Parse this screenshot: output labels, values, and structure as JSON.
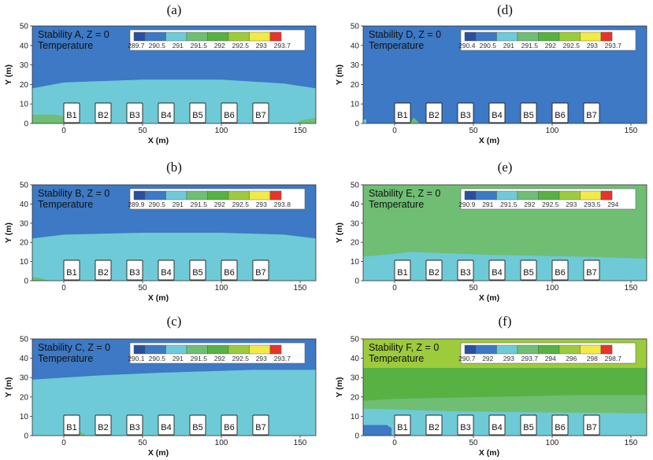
{
  "chart_data": [
    {
      "type": "heatmap",
      "panel_label": "(a)",
      "title_line1": "Stability A, Z = 0",
      "title_line2": "Temperature",
      "colorbar": [
        "289.7",
        "290.5",
        "291",
        "291.5",
        "292",
        "292.5",
        "293",
        "293.7"
      ],
      "xlabel": "X (m)",
      "ylabel": "Y (m)",
      "xlim": [
        -20,
        160
      ],
      "ylim": [
        0,
        50
      ],
      "xticks": [
        "0",
        "50",
        "100",
        "150"
      ],
      "yticks": [
        "0",
        "10",
        "20",
        "30",
        "40",
        "50"
      ],
      "bands": [
        {
          "level": 2,
          "boundary": [
            [
              -20,
              0
            ],
            [
              160,
              0
            ],
            [
              160,
              18
            ],
            [
              140,
              20.5
            ],
            [
              100,
              22.5
            ],
            [
              50,
              22.5
            ],
            [
              0,
              21
            ],
            [
              -20,
              18
            ]
          ]
        },
        {
          "level": 3,
          "boundary": [
            [
              -20,
              0
            ],
            [
              10,
              0
            ],
            [
              5,
              2.5
            ],
            [
              -5,
              4.5
            ],
            [
              -20,
              4.5
            ]
          ]
        },
        {
          "level": 3,
          "boundary": [
            [
              148,
              0
            ],
            [
              160,
              0
            ],
            [
              160,
              3
            ],
            [
              150,
              1.5
            ]
          ]
        }
      ],
      "buildings": [
        "B1",
        "B2",
        "B3",
        "B4",
        "B5",
        "B6",
        "B7"
      ]
    },
    {
      "type": "heatmap",
      "panel_label": "(b)",
      "title_line1": "Stability B, Z = 0",
      "title_line2": "Temperature",
      "colorbar": [
        "289.9",
        "290.5",
        "291",
        "291.5",
        "292",
        "292.5",
        "293",
        "293.8"
      ],
      "xlabel": "X (m)",
      "ylabel": "Y (m)",
      "xlim": [
        -20,
        160
      ],
      "ylim": [
        0,
        50
      ],
      "xticks": [
        "0",
        "50",
        "100",
        "150"
      ],
      "yticks": [
        "0",
        "10",
        "20",
        "30",
        "40",
        "50"
      ],
      "bands": [
        {
          "level": 2,
          "boundary": [
            [
              -20,
              0
            ],
            [
              160,
              0
            ],
            [
              160,
              22
            ],
            [
              140,
              24
            ],
            [
              100,
              25
            ],
            [
              50,
              25
            ],
            [
              0,
              24
            ],
            [
              -20,
              22
            ]
          ]
        },
        {
          "level": 3,
          "boundary": [
            [
              -20,
              0
            ],
            [
              -10,
              0
            ],
            [
              -15,
              1.5
            ],
            [
              -20,
              2
            ]
          ]
        }
      ],
      "buildings": [
        "B1",
        "B2",
        "B3",
        "B4",
        "B5",
        "B6",
        "B7"
      ]
    },
    {
      "type": "heatmap",
      "panel_label": "(c)",
      "title_line1": "Stability C, Z = 0",
      "title_line2": "Temperature",
      "colorbar": [
        "290.1",
        "290.5",
        "291",
        "291.5",
        "292",
        "292.5",
        "293",
        "293.7"
      ],
      "xlabel": "X (m)",
      "ylabel": "Y (m)",
      "xlim": [
        -20,
        160
      ],
      "ylim": [
        0,
        50
      ],
      "xticks": [
        "0",
        "50",
        "100",
        "150"
      ],
      "yticks": [
        "0",
        "10",
        "20",
        "30",
        "40",
        "50"
      ],
      "bands": [
        {
          "level": 2,
          "boundary": [
            [
              -20,
              0
            ],
            [
              160,
              0
            ],
            [
              160,
              34
            ],
            [
              120,
              34
            ],
            [
              60,
              32.5
            ],
            [
              20,
              31
            ],
            [
              -20,
              29
            ]
          ]
        },
        {
          "level": 3,
          "boundary": [
            [
              8,
              0
            ],
            [
              14,
              0
            ],
            [
              10,
              2.5
            ]
          ]
        }
      ],
      "buildings": [
        "B1",
        "B2",
        "B3",
        "B4",
        "B5",
        "B6",
        "B7"
      ]
    },
    {
      "type": "heatmap",
      "panel_label": "(d)",
      "title_line1": "Stability D, Z = 0",
      "title_line2": "Temperature",
      "colorbar": [
        "290.4",
        "290.5",
        "291",
        "291.5",
        "292",
        "292.5",
        "293",
        "293.7"
      ],
      "xlabel": "X (m)",
      "ylabel": "Y (m)",
      "xlim": [
        -20,
        160
      ],
      "ylim": [
        0,
        50
      ],
      "xticks": [
        "0",
        "50",
        "100",
        "150"
      ],
      "yticks": [
        "0",
        "10",
        "20",
        "30",
        "40",
        "50"
      ],
      "bands": [
        {
          "level": 2,
          "boundary": [
            [
              -20,
              0
            ],
            [
              -18,
              0
            ],
            [
              -18,
              2
            ],
            [
              -20,
              2
            ]
          ]
        },
        {
          "level": 3,
          "boundary": [
            [
              10,
              0
            ],
            [
              16,
              0
            ],
            [
              12,
              3
            ]
          ]
        }
      ],
      "buildings": [
        "B1",
        "B2",
        "B3",
        "B4",
        "B5",
        "B6",
        "B7"
      ]
    },
    {
      "type": "heatmap",
      "panel_label": "(e)",
      "title_line1": "Stability E, Z = 0",
      "title_line2": "Temperature",
      "colorbar": [
        "290.9",
        "291",
        "291.5",
        "292",
        "292.5",
        "293",
        "293.5",
        "294"
      ],
      "xlabel": "X (m)",
      "ylabel": "Y (m)",
      "xlim": [
        -20,
        160
      ],
      "ylim": [
        0,
        50
      ],
      "xticks": [
        "0",
        "50",
        "100",
        "150"
      ],
      "yticks": [
        "0",
        "10",
        "20",
        "30",
        "40",
        "50"
      ],
      "background_level": 3,
      "bands": [
        {
          "level": 2,
          "boundary": [
            [
              -20,
              0
            ],
            [
              160,
              0
            ],
            [
              160,
              11.5
            ],
            [
              120,
              12.5
            ],
            [
              60,
              13.5
            ],
            [
              10,
              15
            ],
            [
              0,
              14
            ],
            [
              -20,
              12.5
            ]
          ]
        }
      ],
      "buildings": [
        "B1",
        "B2",
        "B3",
        "B4",
        "B5",
        "B6",
        "B7"
      ]
    },
    {
      "type": "heatmap",
      "panel_label": "(f)",
      "title_line1": "Stability F, Z = 0",
      "title_line2": "Temperature",
      "colorbar": [
        "290.7",
        "292",
        "293",
        "293.7",
        "294",
        "296",
        "298",
        "298.7"
      ],
      "xlabel": "X (m)",
      "ylabel": "Y (m)",
      "xlim": [
        -20,
        160
      ],
      "ylim": [
        0,
        50
      ],
      "xticks": [
        "0",
        "50",
        "100",
        "150"
      ],
      "yticks": [
        "0",
        "10",
        "20",
        "30",
        "40",
        "50"
      ],
      "background_level": 5,
      "bands": [
        {
          "level": 4,
          "boundary": [
            [
              -20,
              0
            ],
            [
              160,
              0
            ],
            [
              160,
              35
            ],
            [
              -20,
              35
            ]
          ]
        },
        {
          "level": 3,
          "boundary": [
            [
              -20,
              0
            ],
            [
              160,
              0
            ],
            [
              160,
              21
            ],
            [
              120,
              21
            ],
            [
              60,
              20
            ],
            [
              0,
              19
            ],
            [
              -20,
              18
            ]
          ]
        },
        {
          "level": 2,
          "boundary": [
            [
              -20,
              0
            ],
            [
              160,
              0
            ],
            [
              160,
              11.5
            ],
            [
              100,
              12
            ],
            [
              40,
              12.5
            ],
            [
              0,
              13.5
            ],
            [
              -20,
              14
            ]
          ]
        },
        {
          "level": 1,
          "boundary": [
            [
              -20,
              0
            ],
            [
              -2,
              0
            ],
            [
              -2,
              4
            ],
            [
              -5,
              5.5
            ],
            [
              -20,
              5.5
            ]
          ]
        }
      ],
      "buildings": [
        "B1",
        "B2",
        "B3",
        "B4",
        "B5",
        "B6",
        "B7"
      ]
    }
  ],
  "colors": {
    "levels": [
      "#2a4f9e",
      "#3d79c4",
      "#6ecad6",
      "#6fbe73",
      "#58b143",
      "#9ccb3c",
      "#f2ea45",
      "#f28c2a",
      "#e8332a"
    ],
    "background_default": "#3d79c4"
  },
  "building_x": [
    5,
    25,
    45,
    65,
    85,
    105,
    125
  ]
}
